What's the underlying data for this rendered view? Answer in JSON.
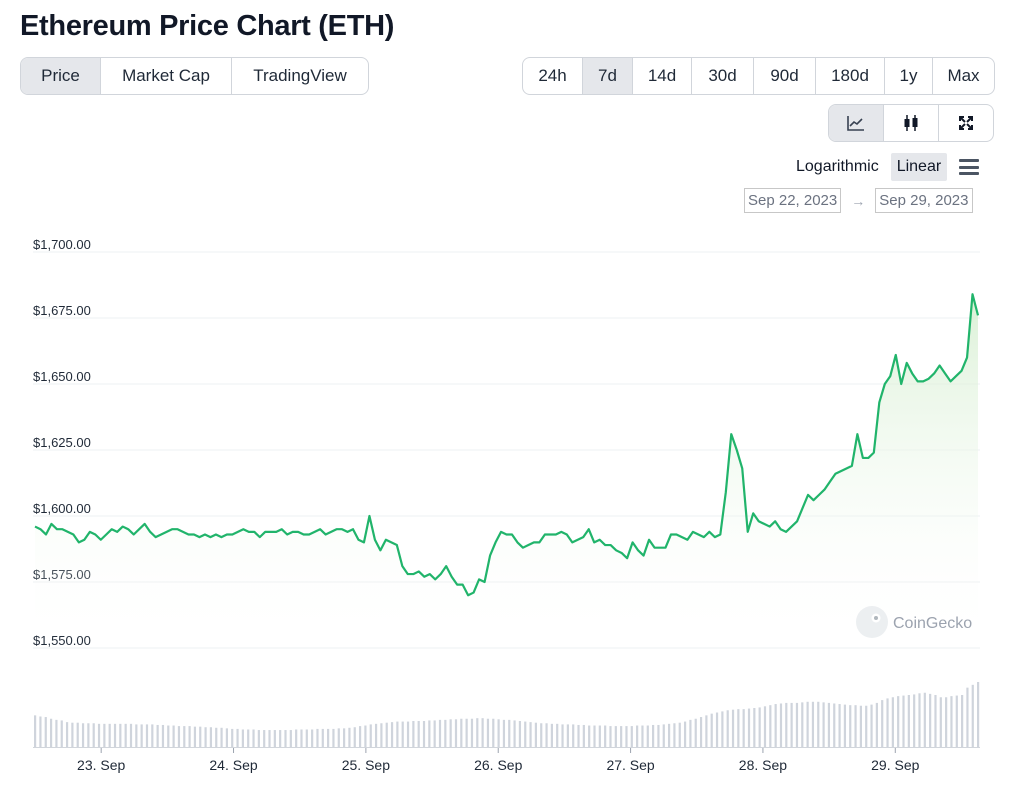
{
  "page": {
    "title": "Ethereum Price Chart (ETH)"
  },
  "data_tabs": [
    {
      "label": "Price",
      "active": true
    },
    {
      "label": "Market Cap",
      "active": false
    },
    {
      "label": "TradingView",
      "active": false
    }
  ],
  "range_tabs": [
    {
      "label": "24h",
      "active": false
    },
    {
      "label": "7d",
      "active": true
    },
    {
      "label": "14d",
      "active": false
    },
    {
      "label": "30d",
      "active": false
    },
    {
      "label": "90d",
      "active": false
    },
    {
      "label": "180d",
      "active": false
    },
    {
      "label": "1y",
      "active": false
    },
    {
      "label": "Max",
      "active": false
    }
  ],
  "chart_type_buttons": [
    {
      "icon": "line-chart-icon",
      "active": true
    },
    {
      "icon": "candlestick-icon",
      "active": false
    },
    {
      "icon": "expand-icon",
      "active": false
    }
  ],
  "scale": {
    "logarithmic_label": "Logarithmic",
    "linear_label": "Linear",
    "selected": "Linear"
  },
  "date_range": {
    "from": "Sep 22, 2023",
    "to": "Sep 29, 2023",
    "arrow": "→"
  },
  "watermark": {
    "text": "CoinGecko"
  },
  "colors": {
    "line": "#21b46b",
    "fill_top": "#d7efd2",
    "volume_bar": "#cfd4dc",
    "grid": "#eef0f3"
  },
  "chart_data": {
    "type": "line",
    "title": "",
    "xlabel": "",
    "ylabel": "",
    "ylim": [
      1550,
      1700
    ],
    "yticks": [
      1550,
      1575,
      1600,
      1625,
      1650,
      1675,
      1700
    ],
    "ytick_labels": [
      "$1,550.00",
      "$1,575.00",
      "$1,600.00",
      "$1,625.00",
      "$1,650.00",
      "$1,675.00",
      "$1,700.00"
    ],
    "xlim": [
      "2023-09-22T12:00",
      "2023-09-29T15:00"
    ],
    "xtick_labels": [
      "23. Sep",
      "24. Sep",
      "25. Sep",
      "26. Sep",
      "27. Sep",
      "28. Sep",
      "29. Sep"
    ],
    "grid": true,
    "series": [
      {
        "values": [
          1596,
          1595,
          1593,
          1597,
          1595,
          1595,
          1594,
          1593,
          1590,
          1591,
          1594,
          1593,
          1591,
          1593,
          1595,
          1594,
          1596,
          1595,
          1593,
          1595,
          1597,
          1594,
          1592,
          1593,
          1594,
          1595,
          1595,
          1594,
          1593,
          1593,
          1592,
          1593,
          1592,
          1593,
          1592,
          1593,
          1593,
          1594,
          1595,
          1594,
          1594,
          1592,
          1594,
          1594,
          1594,
          1595,
          1593,
          1594,
          1594,
          1593,
          1593,
          1594,
          1595,
          1593,
          1594,
          1595,
          1595,
          1594,
          1595,
          1591,
          1590,
          1600,
          1591,
          1587,
          1591,
          1590,
          1589,
          1581,
          1578,
          1578,
          1579,
          1577,
          1578,
          1576,
          1578,
          1581,
          1577,
          1574,
          1574,
          1570,
          1571,
          1576,
          1575,
          1585,
          1590,
          1594,
          1593,
          1593,
          1590,
          1588,
          1589,
          1590,
          1590,
          1593,
          1593,
          1593,
          1594,
          1593,
          1590,
          1591,
          1592,
          1595,
          1590,
          1591,
          1589,
          1589,
          1587,
          1586,
          1584,
          1590,
          1587,
          1585,
          1591,
          1588,
          1588,
          1588,
          1593,
          1593,
          1592,
          1591,
          1594,
          1593,
          1592,
          1594,
          1592,
          1593,
          1609,
          1631,
          1625,
          1618,
          1594,
          1601,
          1598,
          1597,
          1596,
          1598,
          1595,
          1594,
          1596,
          1598,
          1603,
          1608,
          1606,
          1608,
          1610,
          1613,
          1616,
          1617,
          1618,
          1619,
          1631,
          1622,
          1622,
          1624,
          1643,
          1650,
          1653,
          1661,
          1650,
          1658,
          1654,
          1651,
          1651,
          1652,
          1654,
          1657,
          1654,
          1651,
          1653,
          1655,
          1660,
          1684,
          1676
        ]
      }
    ],
    "volume": {
      "relative_scale": true,
      "values": [
        0.56,
        0.54,
        0.53,
        0.5,
        0.48,
        0.47,
        0.44,
        0.43,
        0.43,
        0.42,
        0.42,
        0.42,
        0.41,
        0.41,
        0.41,
        0.41,
        0.41,
        0.41,
        0.41,
        0.4,
        0.4,
        0.4,
        0.4,
        0.39,
        0.39,
        0.38,
        0.38,
        0.37,
        0.37,
        0.37,
        0.36,
        0.36,
        0.35,
        0.35,
        0.34,
        0.34,
        0.33,
        0.32,
        0.32,
        0.31,
        0.31,
        0.31,
        0.3,
        0.3,
        0.3,
        0.3,
        0.3,
        0.3,
        0.3,
        0.31,
        0.31,
        0.31,
        0.31,
        0.32,
        0.32,
        0.32,
        0.32,
        0.33,
        0.33,
        0.34,
        0.35,
        0.37,
        0.38,
        0.4,
        0.41,
        0.42,
        0.43,
        0.44,
        0.45,
        0.45,
        0.45,
        0.46,
        0.46,
        0.46,
        0.47,
        0.47,
        0.48,
        0.48,
        0.49,
        0.49,
        0.5,
        0.5,
        0.5,
        0.51,
        0.51,
        0.5,
        0.5,
        0.49,
        0.48,
        0.48,
        0.47,
        0.46,
        0.45,
        0.44,
        0.43,
        0.42,
        0.42,
        0.41,
        0.41,
        0.4,
        0.4,
        0.4,
        0.39,
        0.39,
        0.38,
        0.38,
        0.38,
        0.38,
        0.37,
        0.37,
        0.37,
        0.37,
        0.37,
        0.38,
        0.38,
        0.38,
        0.39,
        0.39,
        0.4,
        0.41,
        0.42,
        0.43,
        0.45,
        0.48,
        0.5,
        0.53,
        0.56,
        0.59,
        0.61,
        0.63,
        0.65,
        0.66,
        0.67,
        0.67,
        0.68,
        0.69,
        0.7,
        0.72,
        0.74,
        0.76,
        0.77,
        0.78,
        0.78,
        0.78,
        0.79,
        0.8,
        0.8,
        0.8,
        0.79,
        0.78,
        0.77,
        0.76,
        0.75,
        0.74,
        0.74,
        0.73,
        0.73,
        0.75,
        0.78,
        0.83,
        0.86,
        0.88,
        0.9,
        0.91,
        0.92,
        0.93,
        0.95,
        0.96,
        0.94,
        0.92,
        0.88,
        0.88,
        0.9,
        0.91,
        0.92,
        1.05,
        1.1,
        1.15
      ]
    }
  }
}
